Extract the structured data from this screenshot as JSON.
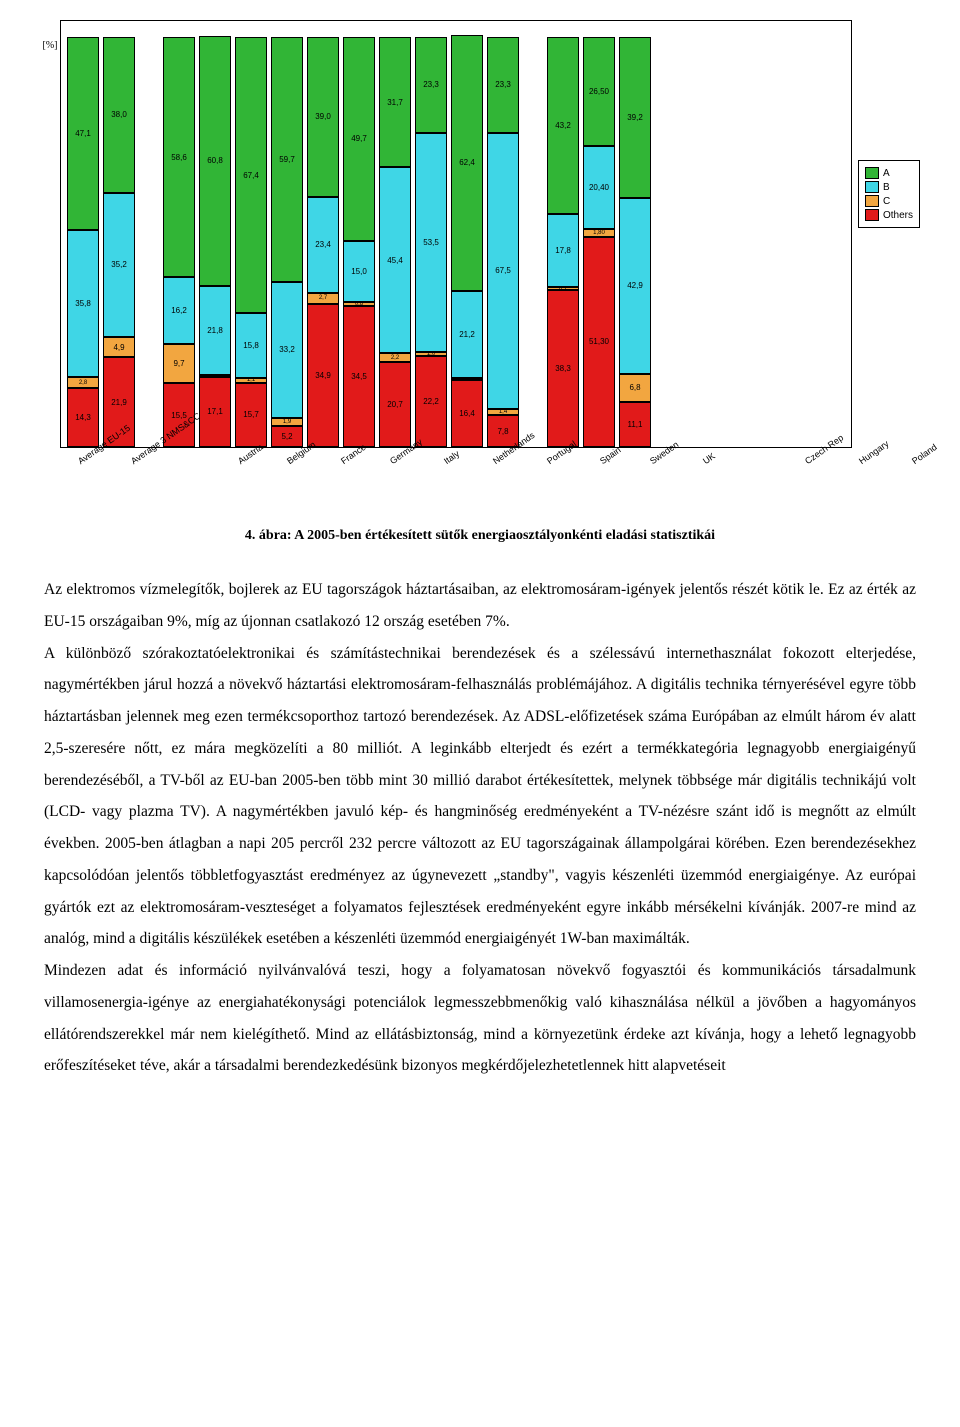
{
  "figure": {
    "y_axis_label": "[%]",
    "caption": "4. ábra: A 2005-ben értékesített sütők energiaosztályonkénti eladási statisztikái",
    "colors": {
      "A": "#31b536",
      "B": "#3fd6e6",
      "C": "#f2a640",
      "Others": "#e11a1a",
      "border": "#000000",
      "background": "#ffffff"
    },
    "legend": [
      {
        "key": "A",
        "label": "A"
      },
      {
        "key": "B",
        "label": "B"
      },
      {
        "key": "C",
        "label": "C"
      },
      {
        "key": "Others",
        "label": "Others"
      }
    ],
    "groups": [
      {
        "gap_after": true,
        "bars": [
          {
            "category": "Average EU-15",
            "segments": [
              {
                "series": "A",
                "value": 47.1,
                "label": "47,1"
              },
              {
                "series": "B",
                "value": 35.8,
                "label": "35,8"
              },
              {
                "series": "C",
                "value": 2.8,
                "label": "2,8"
              },
              {
                "series": "Others",
                "value": 14.3,
                "label": "14,3"
              }
            ]
          },
          {
            "category": "Average 3 NMS&CC",
            "segments": [
              {
                "series": "A",
                "value": 38.0,
                "label": "38,0"
              },
              {
                "series": "B",
                "value": 35.2,
                "label": "35,2"
              },
              {
                "series": "C",
                "value": 4.9,
                "label": "4,9"
              },
              {
                "series": "Others",
                "value": 21.9,
                "label": "21,9"
              }
            ]
          }
        ]
      },
      {
        "gap_after": true,
        "bars": [
          {
            "category": "Austria",
            "segments": [
              {
                "series": "A",
                "value": 58.6,
                "label": "58,6"
              },
              {
                "series": "B",
                "value": 16.2,
                "label": "16,2"
              },
              {
                "series": "C",
                "value": 9.7,
                "label": "9,7"
              },
              {
                "series": "Others",
                "value": 15.5,
                "label": "15,5"
              }
            ]
          },
          {
            "category": "Belgium",
            "segments": [
              {
                "series": "A",
                "value": 60.8,
                "label": "60,8"
              },
              {
                "series": "B",
                "value": 21.8,
                "label": "21,8"
              },
              {
                "series": "C",
                "value": 0.3,
                "label": "0,3"
              },
              {
                "series": "Others",
                "value": 17.1,
                "label": "17,1"
              }
            ]
          },
          {
            "category": "France",
            "segments": [
              {
                "series": "A",
                "value": 67.4,
                "label": "67,4"
              },
              {
                "series": "B",
                "value": 15.8,
                "label": "15,8"
              },
              {
                "series": "C",
                "value": 1.1,
                "label": "1,1"
              },
              {
                "series": "Others",
                "value": 15.7,
                "label": "15,7"
              }
            ]
          },
          {
            "category": "Germany",
            "segments": [
              {
                "series": "A",
                "value": 59.7,
                "label": "59,7"
              },
              {
                "series": "B",
                "value": 33.2,
                "label": "33,2"
              },
              {
                "series": "C",
                "value": 1.9,
                "label": "1,9"
              },
              {
                "series": "Others",
                "value": 5.2,
                "label": "5,2"
              }
            ]
          },
          {
            "category": "Italy",
            "segments": [
              {
                "series": "A",
                "value": 39.0,
                "label": "39,0"
              },
              {
                "series": "B",
                "value": 23.4,
                "label": "23,4"
              },
              {
                "series": "C",
                "value": 2.7,
                "label": "2,7"
              },
              {
                "series": "Others",
                "value": 34.9,
                "label": "34,9"
              }
            ]
          },
          {
            "category": "Netherlands",
            "segments": [
              {
                "series": "A",
                "value": 49.7,
                "label": "49,7"
              },
              {
                "series": "B",
                "value": 15.0,
                "label": "15,0"
              },
              {
                "series": "C",
                "value": 0.8,
                "label": "0,8"
              },
              {
                "series": "Others",
                "value": 34.5,
                "label": "34,5"
              }
            ]
          },
          {
            "category": "Portugal",
            "segments": [
              {
                "series": "A",
                "value": 31.7,
                "label": "31,7"
              },
              {
                "series": "B",
                "value": 45.4,
                "label": "45,4"
              },
              {
                "series": "C",
                "value": 2.2,
                "label": "2,2"
              },
              {
                "series": "Others",
                "value": 20.7,
                "label": "20,7"
              }
            ]
          },
          {
            "category": "Spain",
            "segments": [
              {
                "series": "A",
                "value": 23.3,
                "label": "23,3"
              },
              {
                "series": "B",
                "value": 53.5,
                "label": "53,5"
              },
              {
                "series": "C",
                "value": 1.0,
                "label": "1,0"
              },
              {
                "series": "Others",
                "value": 22.2,
                "label": "22,2"
              }
            ]
          },
          {
            "category": "Sweden",
            "segments": [
              {
                "series": "A",
                "value": 62.4,
                "label": "62,4"
              },
              {
                "series": "B",
                "value": 21.2,
                "label": "21,2"
              },
              {
                "series": "C",
                "value": 0.0,
                "label": "0,0"
              },
              {
                "series": "Others",
                "value": 16.4,
                "label": "16,4"
              }
            ]
          },
          {
            "category": "UK",
            "segments": [
              {
                "series": "A",
                "value": 23.3,
                "label": "23,3"
              },
              {
                "series": "B",
                "value": 67.5,
                "label": "67,5"
              },
              {
                "series": "C",
                "value": 1.4,
                "label": "1,4"
              },
              {
                "series": "Others",
                "value": 7.8,
                "label": "7,8"
              }
            ]
          }
        ]
      },
      {
        "gap_after": false,
        "bars": [
          {
            "category": "Czech Rep",
            "segments": [
              {
                "series": "A",
                "value": 43.2,
                "label": "43,2"
              },
              {
                "series": "B",
                "value": 17.8,
                "label": "17,8"
              },
              {
                "series": "C",
                "value": 0.7,
                "label": "0,7"
              },
              {
                "series": "Others",
                "value": 38.3,
                "label": "38,3"
              }
            ]
          },
          {
            "category": "Hungary",
            "segments": [
              {
                "series": "A",
                "value": 26.5,
                "label": "26,50"
              },
              {
                "series": "B",
                "value": 20.4,
                "label": "20,40"
              },
              {
                "series": "C",
                "value": 1.8,
                "label": "1,80"
              },
              {
                "series": "Others",
                "value": 51.3,
                "label": "51,30"
              }
            ]
          },
          {
            "category": "Poland",
            "segments": [
              {
                "series": "A",
                "value": 39.2,
                "label": "39,2"
              },
              {
                "series": "B",
                "value": 42.9,
                "label": "42,9"
              },
              {
                "series": "C",
                "value": 6.8,
                "label": "6,8"
              },
              {
                "series": "Others",
                "value": 11.1,
                "label": "11,1"
              }
            ]
          }
        ]
      }
    ]
  },
  "body": {
    "para1": "Az elektromos vízmelegítők, bojlerek az EU tagországok háztartásaiban, az elektromosáram-igények jelentős részét kötik le. Ez az érték az EU-15 országaiban 9%, míg az újonnan csatlakozó 12 ország esetében 7%.",
    "para2": "A különböző szórakoztatóelektronikai és számítástechnikai berendezések és a szélessávú internethasználat fokozott elterjedése, nagymértékben járul hozzá a növekvő háztartási elektromosáram-felhasználás problémájához. A digitális technika térnyerésével egyre több háztartásban jelennek meg ezen termékcsoporthoz tartozó berendezések. Az ADSL-előfizetések száma Európában az elmúlt három év alatt 2,5-szeresére nőtt, ez mára megközelíti a 80 milliót. A leginkább elterjedt és ezért a termékkategória legnagyobb energiaigényű berendezéséből, a TV-ből az EU-ban 2005-ben több mint 30 millió darabot értékesítettek, melynek többsége már digitális technikájú volt (LCD- vagy plazma TV). A nagymértékben javuló kép- és hangminőség eredményeként a TV-nézésre szánt idő is megnőtt az elmúlt években. 2005-ben átlagban a napi 205 percről 232 percre változott az EU tagországainak állampolgárai körében. Ezen berendezésekhez kapcsolódóan jelentős többletfogyasztást eredményez az úgynevezett „standby\", vagyis készenléti üzemmód energiaigénye. Az európai gyártók ezt az elektromosáram-veszteséget a folyamatos fejlesztések eredményeként egyre inkább mérsékelni kívánják. 2007-re mind az analóg, mind a digitális készülékek esetében a készenléti üzemmód energiaigényét 1W-ban maximálták.",
    "para3": "Mindezen adat és információ nyilvánvalóvá teszi, hogy a folyamatosan növekvő fogyasztói és kommunikációs társadalmunk villamosenergia-igénye az energiahatékonysági potenciálok legmesszebbmenőkig való kihasználása nélkül a jövőben a hagyományos ellátórendszerekkel már nem kielégíthető. Mind az ellátásbiztonság, mind a környezetünk érdeke azt kívánja, hogy a lehető legnagyobb erőfeszítéseket téve, akár a társadalmi berendezkedésünk bizonyos megkérdőjelezhetetlennek hitt alapvetéseit"
  }
}
